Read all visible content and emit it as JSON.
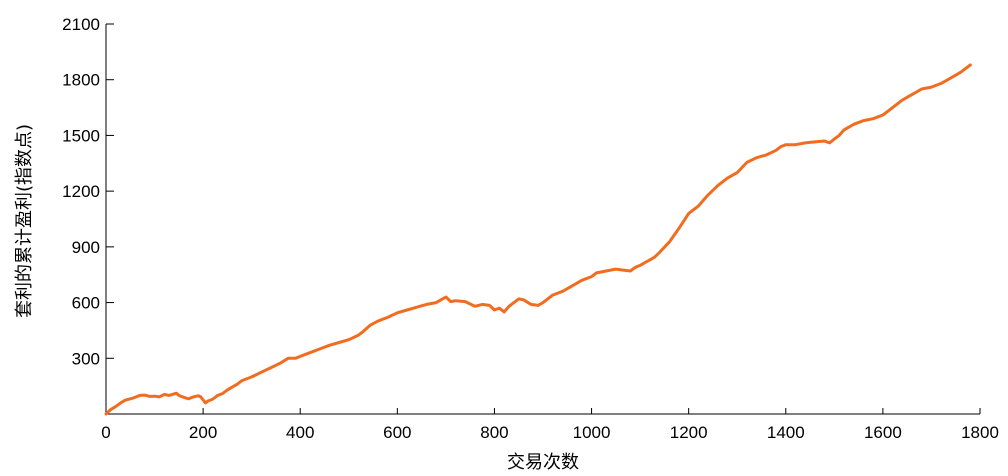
{
  "chart_data": {
    "type": "line",
    "xlabel": "交易次数",
    "ylabel": "套利的累计盈利(指数点)",
    "xlim": [
      0,
      1800
    ],
    "ylim": [
      0,
      2100
    ],
    "xticks": [
      0,
      200,
      400,
      600,
      800,
      1000,
      1200,
      1400,
      1600,
      1800
    ],
    "yticks": [
      300,
      600,
      900,
      1200,
      1500,
      1800,
      2100
    ],
    "grid": false,
    "line_color": "#f26c1f",
    "series": [
      {
        "x": [
          0,
          10,
          20,
          30,
          40,
          55,
          70,
          80,
          90,
          100,
          110,
          120,
          130,
          145,
          150,
          160,
          170,
          180,
          190,
          195,
          205,
          210,
          220,
          230,
          240,
          250,
          260,
          270,
          280,
          300,
          320,
          340,
          360,
          375,
          390,
          400,
          420,
          440,
          460,
          480,
          500,
          520,
          530,
          545,
          560,
          580,
          600,
          620,
          640,
          660,
          680,
          690,
          700,
          710,
          720,
          740,
          760,
          775,
          790,
          800,
          810,
          820,
          830,
          850,
          860,
          875,
          890,
          900,
          920,
          940,
          960,
          980,
          1000,
          1010,
          1030,
          1050,
          1065,
          1080,
          1090,
          1100,
          1110,
          1120,
          1130,
          1140,
          1160,
          1180,
          1200,
          1220,
          1240,
          1260,
          1280,
          1300,
          1320,
          1340,
          1360,
          1380,
          1390,
          1400,
          1420,
          1440,
          1460,
          1480,
          1490,
          1500,
          1510,
          1520,
          1540,
          1560,
          1580,
          1600,
          1620,
          1640,
          1660,
          1680,
          1700,
          1720,
          1740,
          1760,
          1780
        ],
        "y": [
          0,
          25,
          40,
          60,
          75,
          85,
          100,
          102,
          95,
          96,
          92,
          105,
          100,
          112,
          100,
          90,
          82,
          92,
          98,
          92,
          60,
          70,
          80,
          100,
          110,
          130,
          145,
          160,
          180,
          200,
          225,
          250,
          275,
          300,
          300,
          310,
          330,
          350,
          370,
          385,
          400,
          425,
          445,
          480,
          500,
          520,
          545,
          560,
          575,
          590,
          600,
          615,
          630,
          605,
          610,
          605,
          580,
          590,
          585,
          560,
          570,
          550,
          580,
          620,
          615,
          590,
          585,
          600,
          640,
          660,
          690,
          720,
          740,
          760,
          770,
          780,
          775,
          770,
          790,
          800,
          815,
          830,
          845,
          870,
          925,
          1000,
          1080,
          1120,
          1180,
          1230,
          1270,
          1300,
          1355,
          1380,
          1395,
          1420,
          1440,
          1450,
          1450,
          1460,
          1465,
          1470,
          1460,
          1480,
          1500,
          1530,
          1560,
          1580,
          1590,
          1610,
          1650,
          1690,
          1720,
          1750,
          1760,
          1780,
          1810,
          1840,
          1880
        ]
      }
    ]
  }
}
